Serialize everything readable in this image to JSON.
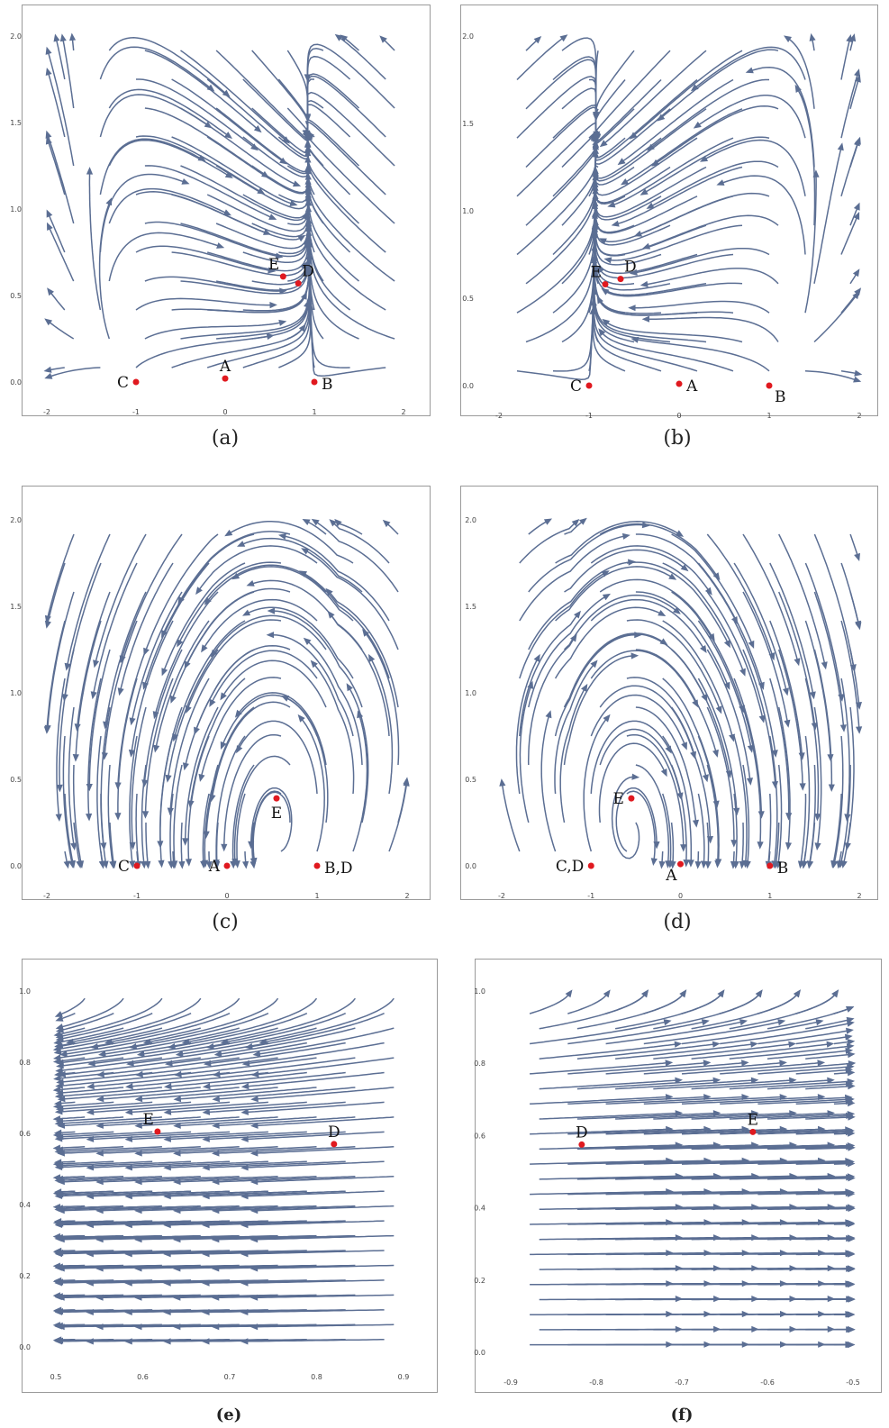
{
  "colors": {
    "stream": "#5b6e93",
    "point": "#e0191f",
    "frame": "#9a9a9a"
  },
  "chart_data": [
    {
      "type": "streamplot",
      "caption": "(a)",
      "xlim": [
        -2,
        2
      ],
      "ylim": [
        0,
        2
      ],
      "xticks": [
        "-2",
        "-1",
        "0",
        "1",
        "2"
      ],
      "yticks": [
        "0.0",
        "0.5",
        "1.0",
        "1.5",
        "2.0"
      ],
      "points": [
        {
          "label": "A",
          "x": 0,
          "y": 0.02,
          "label_pos": "above"
        },
        {
          "label": "B",
          "x": 1,
          "y": 0.0,
          "label_pos": "right"
        },
        {
          "label": "C",
          "x": -1,
          "y": 0.0,
          "label_pos": "left"
        },
        {
          "label": "D",
          "x": 0.82,
          "y": 0.57,
          "label_pos": "above-right"
        },
        {
          "label": "E",
          "x": 0.65,
          "y": 0.61,
          "label_pos": "above-left"
        }
      ]
    },
    {
      "type": "streamplot",
      "caption": "(b)",
      "xlim": [
        -2,
        2
      ],
      "ylim": [
        0,
        2
      ],
      "xticks": [
        "-2",
        "-1",
        "0",
        "1",
        "2"
      ],
      "yticks": [
        "0.0",
        "0.5",
        "1.0",
        "1.5",
        "2.0"
      ],
      "points": [
        {
          "label": "A",
          "x": 0,
          "y": 0.01,
          "label_pos": "right"
        },
        {
          "label": "B",
          "x": 1,
          "y": 0.0,
          "label_pos": "below-right"
        },
        {
          "label": "C",
          "x": -1,
          "y": 0.0,
          "label_pos": "left"
        },
        {
          "label": "D",
          "x": -0.65,
          "y": 0.61,
          "label_pos": "above-right"
        },
        {
          "label": "E",
          "x": -0.82,
          "y": 0.58,
          "label_pos": "above-left"
        }
      ]
    },
    {
      "type": "streamplot",
      "caption": "(c)",
      "xlim": [
        -2,
        2
      ],
      "ylim": [
        0,
        2
      ],
      "xticks": [
        "-2",
        "-1",
        "0",
        "1",
        "2"
      ],
      "yticks": [
        "0.0",
        "0.5",
        "1.0",
        "1.5",
        "2.0"
      ],
      "points": [
        {
          "label": "A",
          "x": 0,
          "y": 0.0,
          "label_pos": "left"
        },
        {
          "label": "B,D",
          "x": 1,
          "y": 0.0,
          "label_pos": "right"
        },
        {
          "label": "C",
          "x": -1,
          "y": 0.0,
          "label_pos": "left"
        },
        {
          "label": "E",
          "x": 0.55,
          "y": 0.39,
          "label_pos": "below"
        }
      ]
    },
    {
      "type": "streamplot",
      "caption": "(d)",
      "xlim": [
        -2,
        2
      ],
      "ylim": [
        0,
        2
      ],
      "xticks": [
        "-2",
        "-1",
        "0",
        "1",
        "2"
      ],
      "yticks": [
        "0.0",
        "0.5",
        "1.0",
        "1.5",
        "2.0"
      ],
      "points": [
        {
          "label": "A",
          "x": 0,
          "y": 0.01,
          "label_pos": "below-left"
        },
        {
          "label": "B",
          "x": 1,
          "y": 0.0,
          "label_pos": "right"
        },
        {
          "label": "C,D",
          "x": -1,
          "y": 0.0,
          "label_pos": "left"
        },
        {
          "label": "E",
          "x": -0.55,
          "y": 0.39,
          "label_pos": "left"
        }
      ]
    },
    {
      "type": "streamplot",
      "caption": "(e)",
      "xlim": [
        0.5,
        0.9
      ],
      "ylim": [
        0,
        1
      ],
      "xticks": [
        "0.5",
        "0.6",
        "0.7",
        "0.8",
        "0.9"
      ],
      "yticks": [
        "0.0",
        "0.2",
        "0.4",
        "0.6",
        "0.8",
        "1.0"
      ],
      "points": [
        {
          "label": "D",
          "x": 0.82,
          "y": 0.57,
          "label_pos": "above"
        },
        {
          "label": "E",
          "x": 0.617,
          "y": 0.605,
          "label_pos": "above-left"
        }
      ]
    },
    {
      "type": "streamplot",
      "caption": "(f)",
      "xlim": [
        -0.9,
        -0.5
      ],
      "ylim": [
        0,
        1
      ],
      "xticks": [
        "-0.9",
        "-0.8",
        "-0.7",
        "-0.6",
        "-0.5"
      ],
      "yticks": [
        "0.0",
        "0.2",
        "0.4",
        "0.6",
        "0.8",
        "1.0"
      ],
      "points": [
        {
          "label": "D",
          "x": -0.817,
          "y": 0.575,
          "label_pos": "above"
        },
        {
          "label": "E",
          "x": -0.617,
          "y": 0.61,
          "label_pos": "above"
        }
      ]
    }
  ]
}
